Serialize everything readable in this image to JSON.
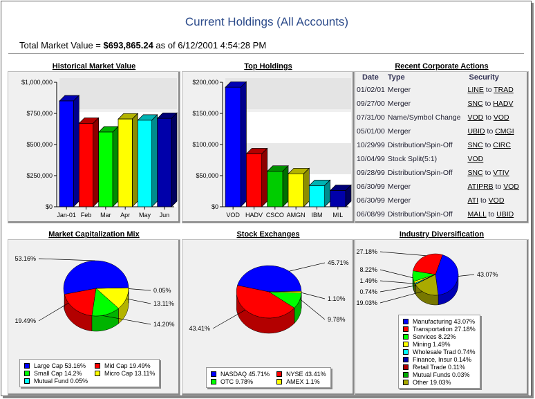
{
  "title": "Current Holdings (All Accounts)",
  "summary": {
    "prefix": "Total Market Value = ",
    "value": "$693,865.24",
    "suffix": " as of 6/12/2001 4:54:28 PM"
  },
  "chart_data": [
    {
      "id": "hist",
      "type": "bar",
      "title": "Historical Market Value",
      "categories": [
        "Jan-01",
        "Feb",
        "Mar",
        "Apr",
        "May",
        "Jun"
      ],
      "values": [
        850000,
        670000,
        600000,
        705000,
        695000,
        710000
      ],
      "colors": [
        "#0000ff",
        "#ff0000",
        "#00ff00",
        "#ffff00",
        "#00ffff",
        "#0000aa"
      ],
      "ylim": [
        0,
        1000000
      ],
      "yticks": [
        "$0",
        "$250,000",
        "$500,000",
        "$750,000",
        "$1,000,000"
      ]
    },
    {
      "id": "top",
      "type": "bar",
      "title": "Top Holdings",
      "categories": [
        "VOD",
        "HADV",
        "CSCO",
        "AMGN",
        "IBM",
        "MIL"
      ],
      "values": [
        192000,
        85000,
        57000,
        53000,
        34000,
        26000
      ],
      "colors": [
        "#0000ff",
        "#ff0000",
        "#00cc00",
        "#ffff00",
        "#00ffff",
        "#0000aa"
      ],
      "ylim": [
        0,
        200000
      ],
      "yticks": [
        "$0",
        "$50,000",
        "$100,000",
        "$150,000",
        "$200,000"
      ]
    },
    {
      "id": "mcap",
      "type": "pie",
      "title": "Market Capitalization Mix",
      "labels": [
        "Large Cap 53.16%",
        "Mid Cap 19.49%",
        "Small Cap 14.2%",
        "Micro Cap 13.11%",
        "Mutual Fund 0.05%"
      ],
      "values": [
        53.16,
        19.49,
        14.2,
        13.11,
        0.05
      ],
      "callouts": [
        "53.16%",
        "19.49%",
        "14.20%",
        "13.11%",
        "0.05%"
      ],
      "colors": [
        "#0000ff",
        "#ff0000",
        "#00ff00",
        "#ffff00",
        "#00ffff"
      ]
    },
    {
      "id": "exch",
      "type": "pie",
      "title": "Stock Exchanges",
      "labels": [
        "NASDAQ 45.71%",
        "NYSE 43.41%",
        "OTC 9.78%",
        "AMEX 1.1%"
      ],
      "values": [
        45.71,
        43.41,
        9.78,
        1.1
      ],
      "callouts": [
        "45.71%",
        "43.41%",
        "9.78%",
        "1.10%"
      ],
      "colors": [
        "#0000ff",
        "#ff0000",
        "#00ff00",
        "#ffff00"
      ]
    },
    {
      "id": "ind",
      "type": "pie",
      "title": "Industry Diversification",
      "labels": [
        "Manufacturing 43.07%",
        "Transportation 27.18%",
        "Services 8.22%",
        "Mining 1.49%",
        "Wholesale Trad 0.74%",
        "Finance, Insur 0.14%",
        "Retail Trade 0.11%",
        "Mutual Funds 0.03%",
        "Other 19.03%"
      ],
      "values": [
        43.07,
        27.18,
        8.22,
        1.49,
        0.74,
        0.14,
        0.11,
        0.03,
        19.03
      ],
      "callouts": [
        "43.07%",
        "27.18%",
        "8.22%",
        "1.49%",
        "0.74%",
        "",
        "",
        "",
        "19.03%"
      ],
      "colors": [
        "#0000ff",
        "#ff0000",
        "#00ff00",
        "#ffff00",
        "#00ffff",
        "#0000aa",
        "#aa0000",
        "#00aa00",
        "#aaaa00"
      ]
    }
  ],
  "actions": {
    "title": "Recent Corporate Actions",
    "headers": [
      "Date",
      "Type",
      "Security"
    ],
    "rows": [
      {
        "date": "01/02/01",
        "type": "Merger",
        "from": "LINE",
        "to": "TRAD"
      },
      {
        "date": "09/27/00",
        "type": "Merger",
        "from": "SNC",
        "to": "HADV"
      },
      {
        "date": "07/31/00",
        "type": "Name/Symbol Change",
        "from": "VOD",
        "to": "VOD"
      },
      {
        "date": "05/01/00",
        "type": "Merger",
        "from": "UBID",
        "to": "CMGI"
      },
      {
        "date": "10/29/99",
        "type": "Distribution/Spin-Off",
        "from": "SNC",
        "to": "CIRC"
      },
      {
        "date": "10/04/99",
        "type": "Stock Split(5:1)",
        "from": "VOD",
        "to": ""
      },
      {
        "date": "09/28/99",
        "type": "Distribution/Spin-Off",
        "from": "SNC",
        "to": "VTIV"
      },
      {
        "date": "06/30/99",
        "type": "Merger",
        "from": "ATIPRB",
        "to": "VOD"
      },
      {
        "date": "06/30/99",
        "type": "Merger",
        "from": "ATI",
        "to": "VOD"
      },
      {
        "date": "06/08/99",
        "type": "Distribution/Spin-Off",
        "from": "MALL",
        "to": "UBID"
      }
    ],
    "to_word": " to "
  }
}
